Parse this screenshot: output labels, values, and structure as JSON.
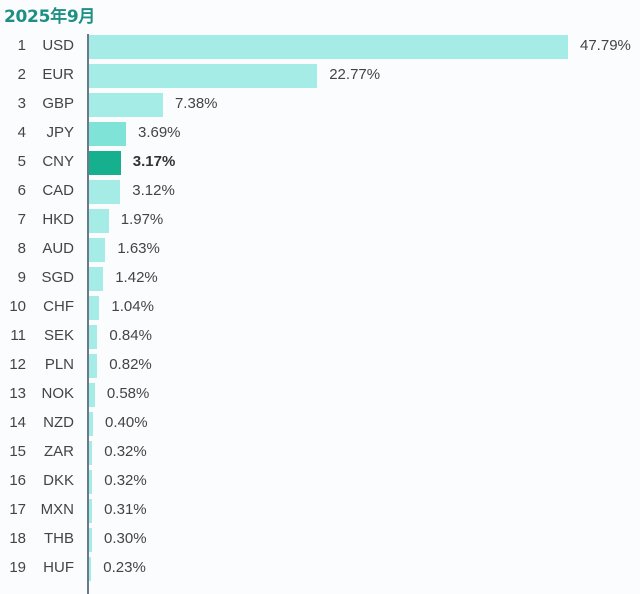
{
  "header": {
    "title": "2025年9月"
  },
  "colors": {
    "bar": "#a6ece6",
    "bar_alt": "#7fe3d8",
    "highlight": "#17b08f",
    "title": "#1e8f84",
    "axis": "#6a7a8a"
  },
  "chart_data": {
    "type": "bar",
    "orientation": "horizontal",
    "title": "2025年9月",
    "xlabel": "",
    "ylabel": "",
    "highlight": "CNY",
    "categories": [
      "USD",
      "EUR",
      "GBP",
      "JPY",
      "CNY",
      "CAD",
      "HKD",
      "AUD",
      "SGD",
      "CHF",
      "SEK",
      "PLN",
      "NOK",
      "NZD",
      "ZAR",
      "DKK",
      "MXN",
      "THB",
      "HUF"
    ],
    "ranks": [
      1,
      2,
      3,
      4,
      5,
      6,
      7,
      8,
      9,
      10,
      11,
      12,
      13,
      14,
      15,
      16,
      17,
      18,
      19
    ],
    "values": [
      47.79,
      22.77,
      7.38,
      3.69,
      3.17,
      3.12,
      1.97,
      1.63,
      1.42,
      1.04,
      0.84,
      0.82,
      0.58,
      0.4,
      0.32,
      0.32,
      0.31,
      0.3,
      0.23
    ],
    "labels": [
      "47.79%",
      "22.77%",
      "7.38%",
      "3.69%",
      "3.17%",
      "3.12%",
      "1.97%",
      "1.63%",
      "1.42%",
      "1.04%",
      "0.84%",
      "0.82%",
      "0.58%",
      "0.40%",
      "0.32%",
      "0.32%",
      "0.31%",
      "0.30%",
      "0.23%"
    ],
    "grid": false,
    "legend": null
  }
}
